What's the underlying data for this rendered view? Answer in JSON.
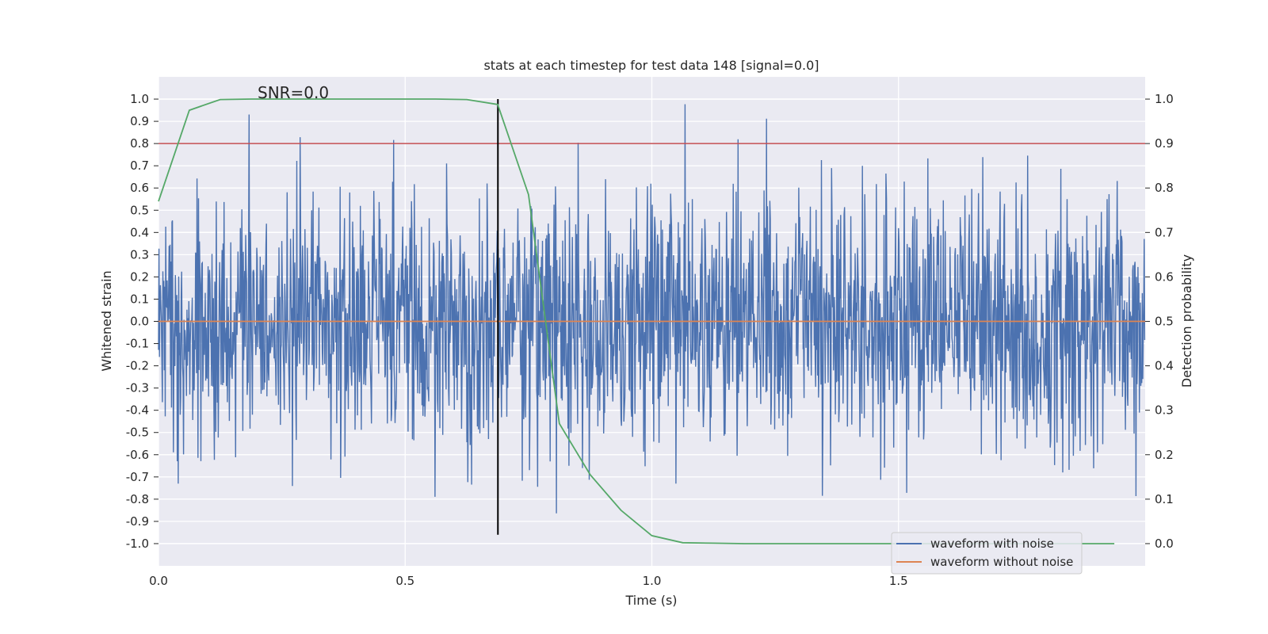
{
  "chart_data": {
    "type": "line",
    "title": "stats at each timestep for test data 148 [signal=0.0]",
    "xlabel": "Time (s)",
    "ylabel": "Whitened strain",
    "y2label": "Detection probability",
    "annotation": "SNR=0.0",
    "xlim": [
      0.0,
      2.0
    ],
    "ylim": [
      -1.1,
      1.1
    ],
    "y2lim": [
      -0.05,
      1.05
    ],
    "xticks": [
      0.0,
      0.5,
      1.0,
      1.5
    ],
    "xtick_labels": [
      "0.0",
      "0.5",
      "1.0",
      "1.5"
    ],
    "yticks": [
      1.0,
      0.9,
      0.8,
      0.7,
      0.6,
      0.5,
      0.4,
      0.3,
      0.2,
      0.1,
      0.0,
      -0.1,
      -0.2,
      -0.3,
      -0.4,
      -0.5,
      -0.6,
      -0.7,
      -0.8,
      -0.9,
      -1.0
    ],
    "ytick_labels": [
      "1.0",
      "0.9",
      "0.8",
      "0.7",
      "0.6",
      "0.5",
      "0.4",
      "0.3",
      "0.2",
      "0.1",
      "0.0",
      "-0.1",
      "-0.2",
      "-0.3",
      "-0.4",
      "-0.5",
      "-0.6",
      "-0.7",
      "-0.8",
      "-0.9",
      "-1.0"
    ],
    "y2ticks": [
      1.0,
      0.9,
      0.8,
      0.7,
      0.6,
      0.5,
      0.4,
      0.3,
      0.2,
      0.1,
      0.0
    ],
    "y2tick_labels": [
      "1.0",
      "0.9",
      "0.8",
      "0.7",
      "0.6",
      "0.5",
      "0.4",
      "0.3",
      "0.2",
      "0.1",
      "0.0"
    ],
    "grid": true,
    "legend_position": "bottom-right",
    "threshold_line": {
      "y": 0.8,
      "color": "#c44e52"
    },
    "marker_line": {
      "x": 0.688,
      "y_range": [
        -0.96,
        1.0
      ],
      "color": "#000000"
    },
    "series": [
      {
        "name": "waveform with noise",
        "color": "#4c72b0",
        "axis": "left",
        "n_samples": 2048,
        "x_range": [
          0.0,
          2.0
        ],
        "generation": "random noise, amplitude ~0.28 std, clipped to [-1, 1], seed 148",
        "in_legend": true
      },
      {
        "name": "waveform without noise",
        "color": "#dd8452",
        "axis": "left",
        "x": [
          0.0,
          2.0
        ],
        "y": [
          0.0,
          0.0
        ],
        "in_legend": true
      },
      {
        "name": "detection probability",
        "color": "#55a868",
        "axis": "right",
        "in_legend": false,
        "x": [
          0.0,
          0.0625,
          0.125,
          0.1875,
          0.25,
          0.3125,
          0.375,
          0.4375,
          0.5,
          0.5625,
          0.625,
          0.6875,
          0.75,
          0.8125,
          0.875,
          0.9375,
          1.0,
          1.0625,
          1.125,
          1.1875,
          1.25,
          1.3125,
          1.375,
          1.4375,
          1.5,
          1.5625,
          1.625,
          1.6875,
          1.75,
          1.8125,
          1.875,
          1.9375
        ],
        "y": [
          0.77,
          0.975,
          0.999,
          1.0,
          1.0,
          1.0,
          1.0,
          1.0,
          1.0,
          1.0,
          0.999,
          0.988,
          0.785,
          0.27,
          0.155,
          0.075,
          0.018,
          0.002,
          0.001,
          0.0,
          0.0,
          0.0,
          0.0,
          0.0,
          0.0,
          0.0,
          0.0,
          0.0,
          0.0,
          0.0,
          0.0,
          0.0
        ]
      }
    ]
  }
}
